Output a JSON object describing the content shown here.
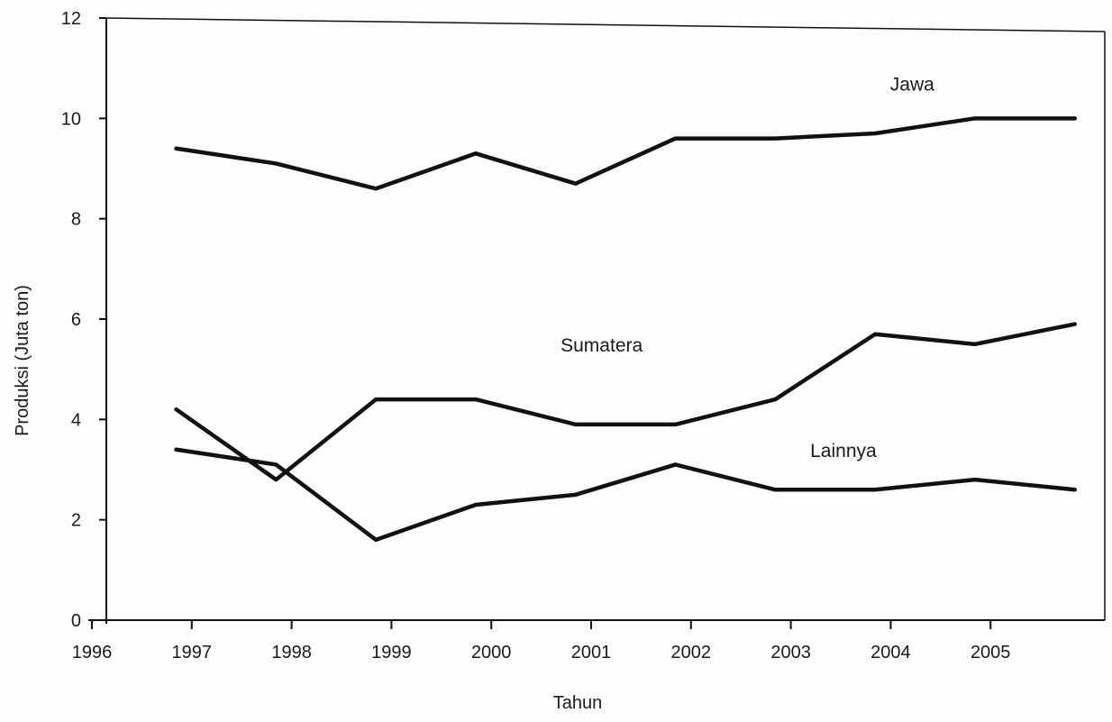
{
  "chart_data": {
    "type": "line",
    "title": "",
    "xlabel": "Tahun",
    "ylabel": "Produksi (Juta ton)",
    "ylim": [
      0,
      12
    ],
    "yticks": [
      "0",
      "2",
      "4",
      "6",
      "8",
      "10",
      "12"
    ],
    "xticks": [
      "1996",
      "1997",
      "1998",
      "1999",
      "2000",
      "2001",
      "2002",
      "2003",
      "2004",
      "2005"
    ],
    "grid": false,
    "line_color": "#111111",
    "series": [
      {
        "name": "Jawa",
        "x": [
          1996.7,
          1997.7,
          1998.7,
          1999.7,
          2000.7,
          2001.7,
          2002.7,
          2003.7,
          2004.7,
          2005.7
        ],
        "values": [
          9.4,
          9.1,
          8.6,
          9.3,
          8.7,
          9.6,
          9.6,
          9.7,
          10.0,
          10.0
        ]
      },
      {
        "name": "Sumatera",
        "x": [
          1996.7,
          1997.7,
          1998.7,
          1999.7,
          2000.7,
          2001.7,
          2002.7,
          2003.7,
          2004.7,
          2005.7
        ],
        "values": [
          4.2,
          2.8,
          4.4,
          4.4,
          3.9,
          3.9,
          4.4,
          5.7,
          5.5,
          5.9
        ]
      },
      {
        "name": "Lainnya",
        "x": [
          1996.7,
          1997.7,
          1998.7,
          1999.7,
          2000.7,
          2001.7,
          2002.7,
          2003.7,
          2004.7,
          2005.7
        ],
        "values": [
          3.4,
          3.1,
          1.6,
          2.3,
          2.5,
          3.1,
          2.6,
          2.6,
          2.8,
          2.6
        ]
      }
    ]
  }
}
